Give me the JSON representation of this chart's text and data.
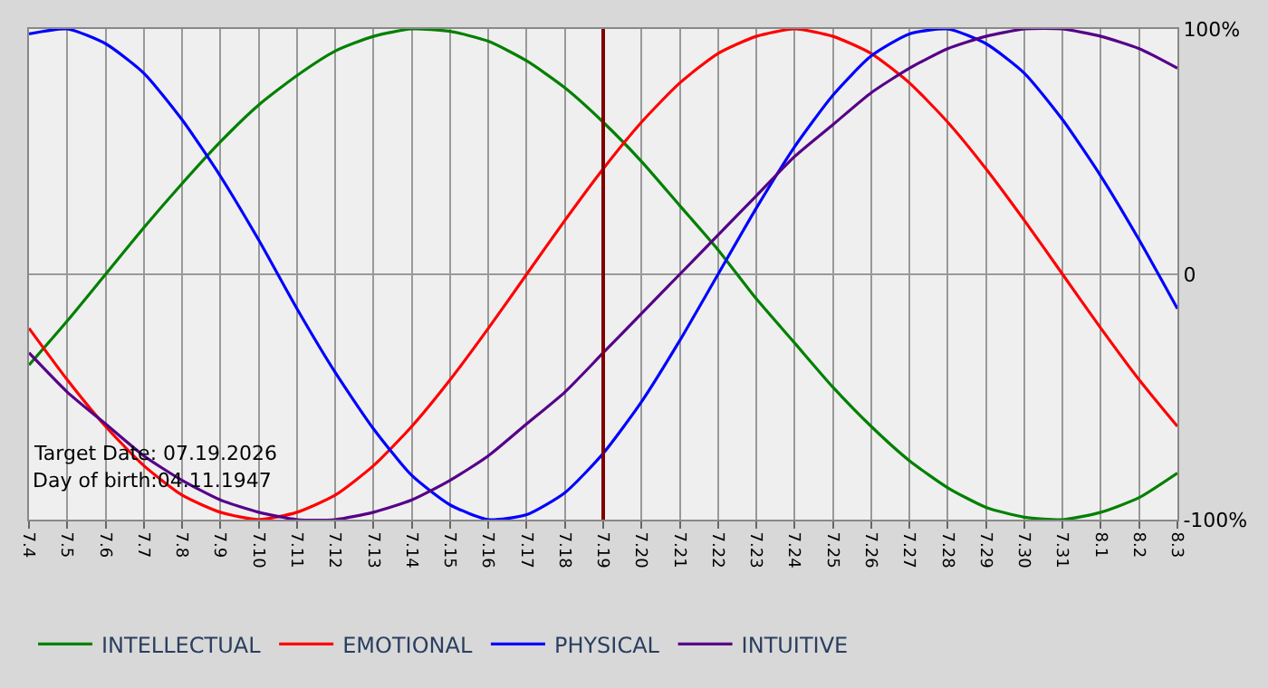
{
  "chart_data": {
    "type": "line",
    "categories": [
      "7.4",
      "7.5",
      "7.6",
      "7.7",
      "7.8",
      "7.9",
      "7.10",
      "7.11",
      "7.12",
      "7.13",
      "7.14",
      "7.15",
      "7.16",
      "7.17",
      "7.18",
      "7.19",
      "7.20",
      "7.21",
      "7.22",
      "7.23",
      "7.24",
      "7.25",
      "7.26",
      "7.27",
      "7.28",
      "7.29",
      "7.30",
      "7.31",
      "8.1",
      "8.2",
      "8.3"
    ],
    "series": [
      {
        "name": "INTELLECTUAL",
        "color": "#008000",
        "values": [
          -37,
          -19,
          0,
          19,
          37,
          54,
          69,
          81,
          91,
          97,
          100,
          99,
          95,
          87,
          76,
          62,
          46,
          28,
          10,
          -10,
          -28,
          -46,
          -62,
          -76,
          -87,
          -95,
          -99,
          -100,
          -97,
          -91,
          -81
        ]
      },
      {
        "name": "EMOTIONAL",
        "color": "#ff0000",
        "values": [
          -22,
          -43,
          -62,
          -78,
          -90,
          -97,
          -100,
          -97,
          -90,
          -78,
          -62,
          -43,
          -22,
          0,
          22,
          43,
          62,
          78,
          90,
          97,
          100,
          97,
          90,
          78,
          62,
          43,
          22,
          0,
          -22,
          -43,
          -62
        ]
      },
      {
        "name": "PHYSICAL",
        "color": "#0000ff",
        "values": [
          98,
          100,
          94,
          82,
          63,
          40,
          14,
          -14,
          -40,
          -63,
          -82,
          -94,
          -100,
          -98,
          -89,
          -73,
          -52,
          -27,
          0,
          27,
          52,
          73,
          89,
          98,
          100,
          94,
          82,
          63,
          40,
          14,
          -14
        ]
      },
      {
        "name": "INTUITIVE",
        "color": "#550088",
        "values": [
          -32,
          -48,
          -61,
          -74,
          -84,
          -92,
          -97,
          -100,
          -100,
          -97,
          -92,
          -84,
          -74,
          -61,
          -48,
          -32,
          -16,
          0,
          16,
          32,
          48,
          61,
          74,
          84,
          92,
          97,
          100,
          100,
          97,
          92,
          84
        ]
      }
    ],
    "ylim": [
      -100,
      100
    ],
    "yticks": [
      {
        "value": 100,
        "label": "100%"
      },
      0,
      {
        "value": -100,
        "label": "-100%"
      }
    ],
    "ref_lines": [
      {
        "axis": "x",
        "value": "7.19",
        "color": "#800000"
      }
    ],
    "annotations": [
      "Target Date: 07.19.2026",
      "Day of birth:04.11.1947"
    ],
    "grid": true,
    "legend": "bottom",
    "marker": "none",
    "line_style": "solid"
  }
}
